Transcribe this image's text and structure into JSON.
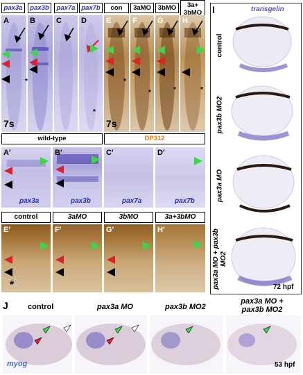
{
  "top_headers": {
    "pax3a": "pax3a",
    "pax3b": "pax3b",
    "pax7a": "pax7a",
    "pax7b": "pax7b",
    "con": "con",
    "mo3a": "3aMO",
    "mo3b": "3bMO",
    "mo3a3b": "3a+ 3bMO"
  },
  "panel_letters": {
    "A": "A",
    "B": "B",
    "C": "C",
    "D": "D",
    "E": "E",
    "F": "F",
    "G": "G",
    "H": "H",
    "Ap": "A′",
    "Bp": "B′",
    "Cp": "C′",
    "Dp": "D′",
    "Ep": "E′",
    "Fp": "F′",
    "Gp": "G′",
    "Hp": "H′",
    "I": "I",
    "J": "J"
  },
  "stage_labels": {
    "left": "7s",
    "right": "7s"
  },
  "group_labels": {
    "wild_type": "wild-type",
    "dp312": "DP312"
  },
  "zoom_genes": {
    "Ap": "pax3a",
    "Bp": "pax3b",
    "Cp": "pax7a",
    "Dp": "pax7b"
  },
  "morpholino_headers": {
    "control": "control",
    "mo3a": "3aMO",
    "mo3b": "3bMO",
    "mo3a3b": "3a+3bMO"
  },
  "panel_I": {
    "title": "transgelin",
    "rows": [
      "control",
      "pax3b MO2",
      "pax3a MO",
      "pax3a MO + pax3b MO2"
    ],
    "stage": "72 hpf"
  },
  "panel_J": {
    "columns": [
      "control",
      "pax3a MO",
      "pax3b MO2",
      "pax3a MO + pax3b MO2"
    ],
    "gene": "myog",
    "stage": "53 hpf"
  },
  "asterisk": "*",
  "colors": {
    "purple_stain": "#5a4fb8",
    "brown_stain": "#8a5a1e",
    "green_arrow": "#3cd64a",
    "red_arrow": "#e0202a",
    "gene_text": "#1f2fd0",
    "dp312_text": "#e07a10"
  }
}
